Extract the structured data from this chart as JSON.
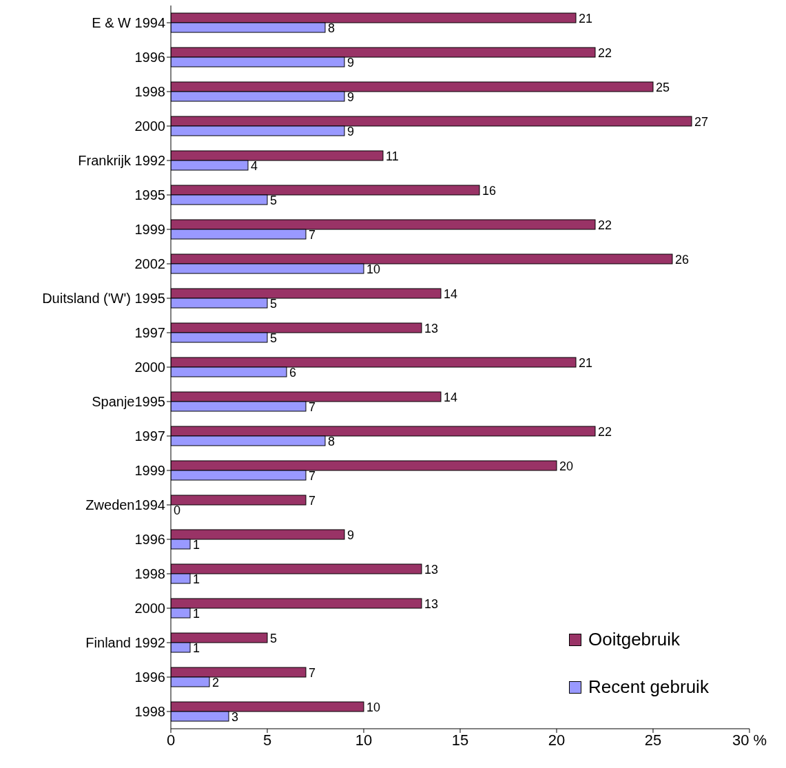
{
  "chart_data": {
    "type": "bar",
    "orientation": "horizontal",
    "categories": [
      "E & W 1994",
      "1996",
      "1998",
      "2000",
      "Frankrijk 1992",
      "1995",
      "1999",
      "2002",
      "Duitsland ('W') 1995",
      "1997",
      "2000",
      "Spanje1995",
      "1997",
      "1999",
      "Zweden1994",
      "1996",
      "1998",
      "2000",
      "Finland 1992",
      "1996",
      "1998"
    ],
    "series": [
      {
        "name": "Ooitgebruik",
        "color": "#993366",
        "values": [
          21,
          22,
          25,
          27,
          11,
          16,
          22,
          26,
          14,
          13,
          21,
          14,
          22,
          20,
          7,
          9,
          13,
          13,
          5,
          7,
          10
        ]
      },
      {
        "name": "Recent gebruik",
        "color": "#9999ff",
        "values": [
          8,
          9,
          9,
          9,
          4,
          5,
          7,
          10,
          5,
          5,
          6,
          7,
          8,
          7,
          0,
          1,
          1,
          1,
          1,
          2,
          3
        ]
      }
    ],
    "xlim": [
      0,
      30
    ],
    "xticks": [
      0,
      5,
      10,
      15,
      20,
      25,
      {
        "value": 30,
        "label": "30 %"
      }
    ],
    "data_labels": true,
    "grid": false,
    "legend": "bottom right"
  }
}
